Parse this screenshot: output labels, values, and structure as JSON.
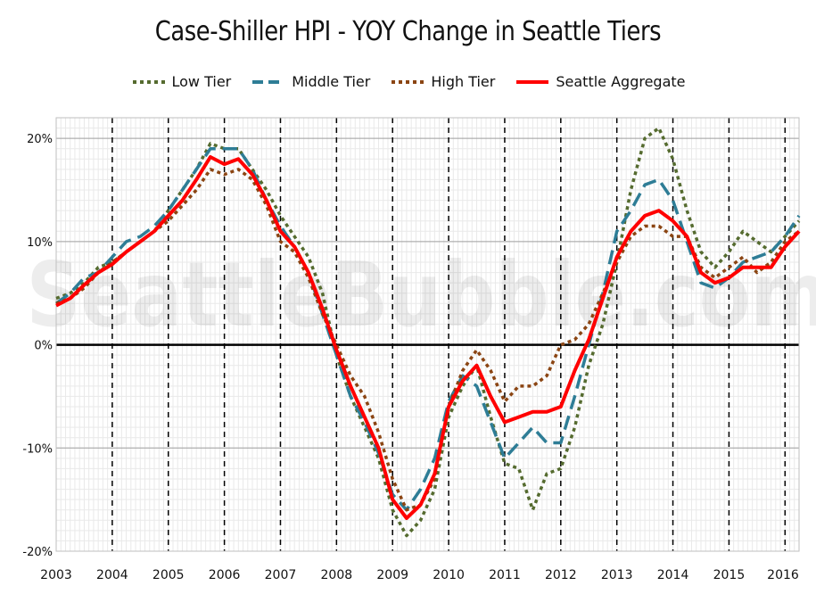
{
  "chart_data": {
    "type": "line",
    "title": "Case-Shiller HPI - YOY Change in Seattle Tiers",
    "xlabel": "",
    "ylabel": "",
    "xlim": [
      2003.0,
      2016.25
    ],
    "ylim": [
      -20,
      22
    ],
    "x_ticks": [
      "2003",
      "2004",
      "2005",
      "2006",
      "2007",
      "2008",
      "2009",
      "2010",
      "2011",
      "2012",
      "2013",
      "2014",
      "2015",
      "2016"
    ],
    "y_ticks": [
      "20%",
      "10%",
      "0%",
      "-10%",
      "-20%"
    ],
    "y_tick_values": [
      20,
      10,
      0,
      -10,
      -20
    ],
    "grid": true,
    "legend_position": "top",
    "watermark": "SeattleBubble.com",
    "series": [
      {
        "name": "Low Tier",
        "color": "#556b2f",
        "style": "dotted",
        "points": [
          [
            2003.0,
            4.5
          ],
          [
            2003.25,
            5.0
          ],
          [
            2003.5,
            6.0
          ],
          [
            2003.75,
            7.5
          ],
          [
            2004.0,
            8.0
          ],
          [
            2004.25,
            9.0
          ],
          [
            2004.5,
            10.0
          ],
          [
            2004.75,
            11.0
          ],
          [
            2005.0,
            13.0
          ],
          [
            2005.25,
            15.0
          ],
          [
            2005.5,
            17.0
          ],
          [
            2005.75,
            19.5
          ],
          [
            2006.0,
            19.0
          ],
          [
            2006.25,
            19.0
          ],
          [
            2006.5,
            17.0
          ],
          [
            2006.75,
            15.0
          ],
          [
            2007.0,
            12.5
          ],
          [
            2007.25,
            10.5
          ],
          [
            2007.5,
            8.5
          ],
          [
            2007.75,
            5.0
          ],
          [
            2008.0,
            -1.0
          ],
          [
            2008.25,
            -5.0
          ],
          [
            2008.5,
            -8.0
          ],
          [
            2008.75,
            -11.0
          ],
          [
            2009.0,
            -16.0
          ],
          [
            2009.25,
            -18.5
          ],
          [
            2009.5,
            -17.0
          ],
          [
            2009.75,
            -14.0
          ],
          [
            2010.0,
            -7.0
          ],
          [
            2010.25,
            -4.0
          ],
          [
            2010.5,
            -2.0
          ],
          [
            2010.75,
            -7.0
          ],
          [
            2011.0,
            -11.5
          ],
          [
            2011.25,
            -12.0
          ],
          [
            2011.5,
            -16.0
          ],
          [
            2011.75,
            -12.5
          ],
          [
            2012.0,
            -12.0
          ],
          [
            2012.25,
            -8.0
          ],
          [
            2012.5,
            -2.0
          ],
          [
            2012.75,
            2.0
          ],
          [
            2013.0,
            8.0
          ],
          [
            2013.25,
            15.0
          ],
          [
            2013.5,
            20.0
          ],
          [
            2013.75,
            21.0
          ],
          [
            2014.0,
            18.0
          ],
          [
            2014.25,
            13.0
          ],
          [
            2014.5,
            9.0
          ],
          [
            2014.75,
            7.5
          ],
          [
            2015.0,
            9.0
          ],
          [
            2015.25,
            11.0
          ],
          [
            2015.5,
            10.0
          ],
          [
            2015.75,
            9.0
          ],
          [
            2016.0,
            10.5
          ],
          [
            2016.25,
            12.0
          ]
        ]
      },
      {
        "name": "Middle Tier",
        "color": "#2e7d96",
        "style": "dashed",
        "points": [
          [
            2003.0,
            4.0
          ],
          [
            2003.25,
            5.0
          ],
          [
            2003.5,
            6.5
          ],
          [
            2003.75,
            7.0
          ],
          [
            2004.0,
            8.5
          ],
          [
            2004.25,
            10.0
          ],
          [
            2004.5,
            10.5
          ],
          [
            2004.75,
            11.5
          ],
          [
            2005.0,
            13.0
          ],
          [
            2005.25,
            15.0
          ],
          [
            2005.5,
            17.0
          ],
          [
            2005.75,
            19.0
          ],
          [
            2006.0,
            19.0
          ],
          [
            2006.25,
            19.0
          ],
          [
            2006.5,
            17.0
          ],
          [
            2006.75,
            14.0
          ],
          [
            2007.0,
            11.5
          ],
          [
            2007.25,
            9.5
          ],
          [
            2007.5,
            7.0
          ],
          [
            2007.75,
            3.0
          ],
          [
            2008.0,
            -1.0
          ],
          [
            2008.25,
            -5.0
          ],
          [
            2008.5,
            -7.5
          ],
          [
            2008.75,
            -10.5
          ],
          [
            2009.0,
            -14.5
          ],
          [
            2009.25,
            -16.0
          ],
          [
            2009.5,
            -14.0
          ],
          [
            2009.75,
            -11.0
          ],
          [
            2010.0,
            -5.5
          ],
          [
            2010.25,
            -3.0
          ],
          [
            2010.5,
            -4.0
          ],
          [
            2010.75,
            -7.5
          ],
          [
            2011.0,
            -11.0
          ],
          [
            2011.25,
            -9.5
          ],
          [
            2011.5,
            -8.0
          ],
          [
            2011.75,
            -9.5
          ],
          [
            2012.0,
            -9.5
          ],
          [
            2012.25,
            -5.0
          ],
          [
            2012.5,
            0.0
          ],
          [
            2012.75,
            5.0
          ],
          [
            2013.0,
            11.0
          ],
          [
            2013.25,
            13.0
          ],
          [
            2013.5,
            15.5
          ],
          [
            2013.75,
            16.0
          ],
          [
            2014.0,
            14.0
          ],
          [
            2014.25,
            10.0
          ],
          [
            2014.5,
            6.0
          ],
          [
            2014.75,
            5.5
          ],
          [
            2015.0,
            6.5
          ],
          [
            2015.25,
            8.0
          ],
          [
            2015.5,
            8.5
          ],
          [
            2015.75,
            9.0
          ],
          [
            2016.0,
            10.5
          ],
          [
            2016.25,
            12.5
          ]
        ]
      },
      {
        "name": "High Tier",
        "color": "#8b4513",
        "style": "dotted",
        "points": [
          [
            2003.0,
            4.0
          ],
          [
            2003.25,
            4.5
          ],
          [
            2003.5,
            5.5
          ],
          [
            2003.75,
            7.0
          ],
          [
            2004.0,
            8.0
          ],
          [
            2004.25,
            9.0
          ],
          [
            2004.5,
            10.0
          ],
          [
            2004.75,
            11.0
          ],
          [
            2005.0,
            12.0
          ],
          [
            2005.25,
            13.5
          ],
          [
            2005.5,
            15.0
          ],
          [
            2005.75,
            17.0
          ],
          [
            2006.0,
            16.5
          ],
          [
            2006.25,
            17.0
          ],
          [
            2006.5,
            16.0
          ],
          [
            2006.75,
            13.5
          ],
          [
            2007.0,
            10.0
          ],
          [
            2007.25,
            9.0
          ],
          [
            2007.5,
            6.5
          ],
          [
            2007.75,
            3.0
          ],
          [
            2008.0,
            0.0
          ],
          [
            2008.25,
            -3.0
          ],
          [
            2008.5,
            -5.0
          ],
          [
            2008.75,
            -8.5
          ],
          [
            2009.0,
            -13.0
          ],
          [
            2009.25,
            -16.0
          ],
          [
            2009.5,
            -15.5
          ],
          [
            2009.75,
            -13.0
          ],
          [
            2010.0,
            -6.0
          ],
          [
            2010.25,
            -2.5
          ],
          [
            2010.5,
            -0.5
          ],
          [
            2010.75,
            -2.5
          ],
          [
            2011.0,
            -5.5
          ],
          [
            2011.25,
            -4.0
          ],
          [
            2011.5,
            -4.0
          ],
          [
            2011.75,
            -3.0
          ],
          [
            2012.0,
            0.0
          ],
          [
            2012.25,
            0.5
          ],
          [
            2012.5,
            2.0
          ],
          [
            2012.75,
            5.0
          ],
          [
            2013.0,
            8.0
          ],
          [
            2013.25,
            10.5
          ],
          [
            2013.5,
            11.5
          ],
          [
            2013.75,
            11.5
          ],
          [
            2014.0,
            10.5
          ],
          [
            2014.25,
            10.5
          ],
          [
            2014.5,
            7.5
          ],
          [
            2014.75,
            6.5
          ],
          [
            2015.0,
            7.5
          ],
          [
            2015.25,
            8.5
          ],
          [
            2015.5,
            7.0
          ],
          [
            2015.75,
            8.0
          ],
          [
            2016.0,
            10.0
          ],
          [
            2016.25,
            11.0
          ]
        ]
      },
      {
        "name": "Seattle Aggregate",
        "color": "#ff0000",
        "style": "solid",
        "points": [
          [
            2003.0,
            3.8
          ],
          [
            2003.25,
            4.5
          ],
          [
            2003.5,
            5.8
          ],
          [
            2003.75,
            7.0
          ],
          [
            2004.0,
            7.8
          ],
          [
            2004.25,
            9.0
          ],
          [
            2004.5,
            10.0
          ],
          [
            2004.75,
            11.0
          ],
          [
            2005.0,
            12.5
          ],
          [
            2005.25,
            14.0
          ],
          [
            2005.5,
            16.0
          ],
          [
            2005.75,
            18.2
          ],
          [
            2006.0,
            17.5
          ],
          [
            2006.25,
            18.0
          ],
          [
            2006.5,
            16.5
          ],
          [
            2006.75,
            14.0
          ],
          [
            2007.0,
            11.0
          ],
          [
            2007.25,
            9.5
          ],
          [
            2007.5,
            7.0
          ],
          [
            2007.75,
            3.5
          ],
          [
            2008.0,
            -0.5
          ],
          [
            2008.25,
            -4.0
          ],
          [
            2008.5,
            -7.0
          ],
          [
            2008.75,
            -10.0
          ],
          [
            2009.0,
            -15.0
          ],
          [
            2009.25,
            -16.8
          ],
          [
            2009.5,
            -15.5
          ],
          [
            2009.75,
            -12.5
          ],
          [
            2010.0,
            -6.0
          ],
          [
            2010.25,
            -3.5
          ],
          [
            2010.5,
            -2.0
          ],
          [
            2010.75,
            -5.0
          ],
          [
            2011.0,
            -7.5
          ],
          [
            2011.25,
            -7.0
          ],
          [
            2011.5,
            -6.5
          ],
          [
            2011.75,
            -6.5
          ],
          [
            2012.0,
            -6.0
          ],
          [
            2012.25,
            -2.5
          ],
          [
            2012.5,
            0.5
          ],
          [
            2012.75,
            4.5
          ],
          [
            2013.0,
            8.5
          ],
          [
            2013.25,
            11.0
          ],
          [
            2013.5,
            12.5
          ],
          [
            2013.75,
            13.0
          ],
          [
            2014.0,
            12.0
          ],
          [
            2014.25,
            10.5
          ],
          [
            2014.5,
            7.0
          ],
          [
            2014.75,
            6.0
          ],
          [
            2015.0,
            6.5
          ],
          [
            2015.25,
            7.5
          ],
          [
            2015.5,
            7.5
          ],
          [
            2015.75,
            7.5
          ],
          [
            2016.0,
            9.5
          ],
          [
            2016.25,
            11.0
          ]
        ]
      }
    ]
  }
}
